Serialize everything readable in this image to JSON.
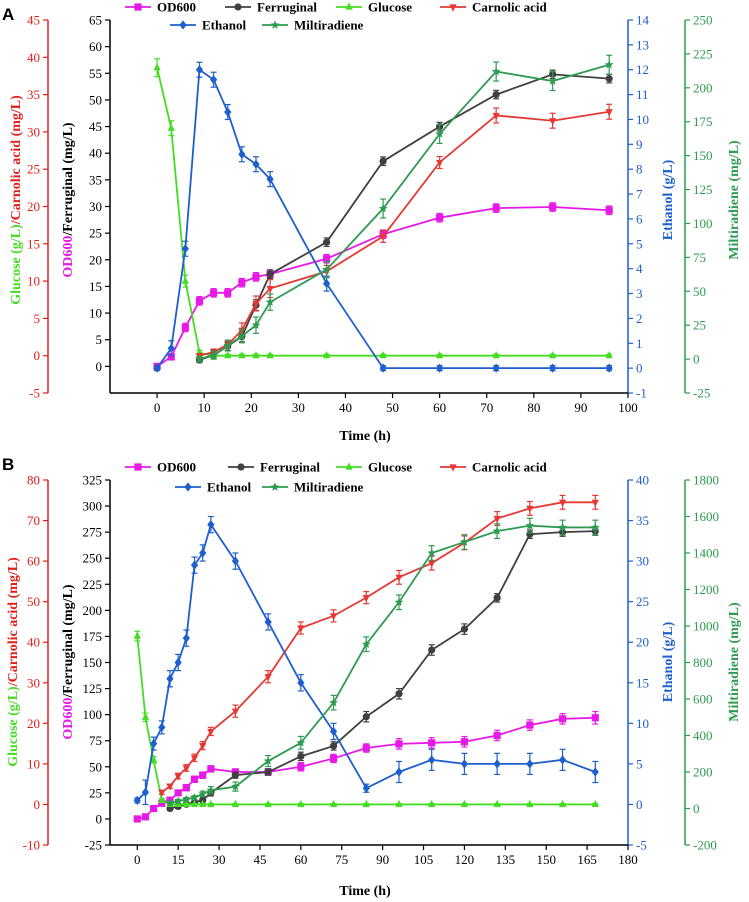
{
  "colors": {
    "od600": "#e619e6",
    "ferruginal": "#404040",
    "glucose": "#44dd22",
    "carnolic": "#e53935",
    "ethanol": "#1e5fcc",
    "miltiradiene": "#2e9b50",
    "axis": "#000000",
    "red_axis": "#e0201b",
    "blue_axis": "#1e5fcc",
    "green_axis": "#2e9b50",
    "glucose_text": "#44dd22",
    "od_text": "#e619e6"
  },
  "chart_data": [
    {
      "panel": "A",
      "type": "line",
      "xlabel": "Time (h)",
      "xlim": [
        -10,
        100
      ],
      "xticks": [
        0,
        10,
        20,
        30,
        40,
        50,
        60,
        70,
        80,
        90,
        100
      ],
      "axes": {
        "red": {
          "ylim": [
            -5,
            45
          ],
          "ticks": [
            -5,
            0,
            5,
            10,
            15,
            20,
            25,
            30,
            35,
            40,
            45
          ],
          "label_part1": "Glucose (g/L)",
          "label_part2": "/Carnolic acid (mg/L)"
        },
        "black": {
          "ylim": [
            -5,
            65
          ],
          "ticks": [
            0,
            5,
            10,
            15,
            20,
            25,
            30,
            35,
            40,
            45,
            50,
            55,
            60,
            65
          ],
          "label_part1": "OD600",
          "label_part2": "/Ferruginal (mg/L)"
        },
        "blue": {
          "ylim": [
            -1,
            14
          ],
          "ticks": [
            -1,
            0,
            1,
            2,
            3,
            4,
            5,
            6,
            7,
            8,
            9,
            10,
            11,
            12,
            13,
            14
          ],
          "label": "Ethanol (g/L)"
        },
        "green": {
          "ylim": [
            -25,
            250
          ],
          "ticks": [
            -25,
            0,
            25,
            50,
            75,
            100,
            125,
            150,
            175,
            200,
            225,
            250
          ],
          "label": "Miltiradiene (mg/L)"
        }
      },
      "legend": [
        "OD600",
        "Ferruginal",
        "Glucose",
        "Carnolic acid",
        "Ethanol",
        "Miltiradiene"
      ],
      "series": [
        {
          "name": "OD600",
          "color_key": "od600",
          "axis": "black",
          "marker": "square",
          "x": [
            0,
            3,
            6,
            9,
            12,
            15,
            18,
            21,
            24,
            36,
            48,
            60,
            72,
            84,
            96
          ],
          "y": [
            0,
            1.8,
            7.3,
            12.3,
            13.8,
            13.8,
            15.7,
            16.8,
            17.3,
            20.2,
            24.8,
            27.9,
            29.7,
            29.9,
            29.3
          ],
          "err": [
            0.5,
            0.6,
            0.8,
            0.8,
            0.8,
            0.8,
            0.8,
            0.8,
            0.8,
            0.8,
            0.8,
            0.8,
            0.8,
            0.8,
            0.8
          ]
        },
        {
          "name": "Ferruginal",
          "color_key": "ferruginal",
          "axis": "black",
          "marker": "circle",
          "x": [
            9,
            12,
            15,
            18,
            21,
            24,
            36,
            48,
            60,
            72,
            84,
            96
          ],
          "y": [
            1.2,
            2.1,
            3.8,
            5.6,
            11.5,
            17.3,
            23.3,
            38.5,
            45.0,
            51.0,
            54.8,
            54.0
          ],
          "err": [
            0.5,
            0.7,
            0.8,
            1.0,
            1.0,
            0.8,
            0.8,
            0.8,
            0.8,
            0.8,
            0.8,
            0.8
          ]
        },
        {
          "name": "Glucose",
          "color_key": "glucose",
          "axis": "red",
          "marker": "triangle",
          "x": [
            0,
            3,
            6,
            9,
            12,
            15,
            18,
            21,
            24,
            36,
            48,
            60,
            72,
            84,
            96
          ],
          "y": [
            38.6,
            30.5,
            10.0,
            0.4,
            0,
            0,
            0,
            0,
            0,
            0,
            0,
            0,
            0,
            0,
            0
          ],
          "err": [
            1.2,
            1.0,
            0.8,
            0.3,
            0.2,
            0.2,
            0.2,
            0.2,
            0.2,
            0.2,
            0.2,
            0.2,
            0.2,
            0.2,
            0.2
          ]
        },
        {
          "name": "Carnolic acid",
          "color_key": "carnolic",
          "axis": "red",
          "marker": "triangle-down",
          "x": [
            9,
            12,
            15,
            18,
            21,
            24,
            36,
            48,
            60,
            72,
            84,
            96
          ],
          "y": [
            0,
            0.5,
            1.5,
            3.4,
            7.0,
            9.0,
            11.3,
            16.0,
            25.9,
            32.2,
            31.5,
            32.7
          ],
          "err": [
            0.3,
            0.4,
            0.5,
            1.0,
            1.0,
            1.2,
            0.8,
            0.8,
            0.8,
            1.0,
            1.0,
            1.0
          ]
        },
        {
          "name": "Ethanol",
          "color_key": "ethanol",
          "axis": "blue",
          "marker": "diamond",
          "x": [
            0,
            3,
            6,
            9,
            12,
            15,
            18,
            21,
            24,
            36,
            48,
            60,
            72,
            84,
            96
          ],
          "y": [
            0,
            0.8,
            4.8,
            12.0,
            11.6,
            10.3,
            8.6,
            8.2,
            7.6,
            3.4,
            0,
            0,
            0,
            0,
            0
          ],
          "err": [
            0.1,
            0.3,
            0.3,
            0.3,
            0.3,
            0.3,
            0.3,
            0.3,
            0.3,
            0.3,
            0.1,
            0.1,
            0.1,
            0.1,
            0.1
          ]
        },
        {
          "name": "Miltiradiene",
          "color_key": "miltiradiene",
          "axis": "green",
          "marker": "star",
          "x": [
            9,
            12,
            15,
            18,
            21,
            24,
            36,
            48,
            60,
            72,
            84,
            96
          ],
          "y": [
            0,
            3,
            10,
            17,
            25,
            42,
            66,
            111,
            166,
            212,
            205,
            217
          ],
          "err": [
            2,
            3,
            4,
            5,
            6,
            6,
            6,
            7,
            7,
            7,
            7,
            7
          ]
        }
      ]
    },
    {
      "panel": "B",
      "type": "line",
      "xlabel": "Time (h)",
      "xlim": [
        -10,
        180
      ],
      "xticks": [
        0,
        15,
        30,
        45,
        60,
        75,
        90,
        105,
        120,
        135,
        150,
        165,
        180
      ],
      "axes": {
        "red": {
          "ylim": [
            -10,
            80
          ],
          "ticks": [
            -10,
            0,
            10,
            20,
            30,
            40,
            50,
            60,
            70,
            80
          ],
          "label_part1": "Glucose (g/L)",
          "label_part2": "/Carnolic acid (mg/L)"
        },
        "black": {
          "ylim": [
            -25,
            325
          ],
          "ticks": [
            -25,
            0,
            25,
            50,
            75,
            100,
            125,
            150,
            175,
            200,
            225,
            250,
            275,
            300,
            325
          ],
          "label_part1": "OD600",
          "label_part2": "/Ferruginal (mg/L)"
        },
        "blue": {
          "ylim": [
            -5,
            40
          ],
          "ticks": [
            -5,
            0,
            5,
            10,
            15,
            20,
            25,
            30,
            35,
            40
          ],
          "label": "Ethanol (g/L)"
        },
        "green": {
          "ylim": [
            -200,
            1800
          ],
          "ticks": [
            -200,
            0,
            200,
            400,
            600,
            800,
            1000,
            1200,
            1400,
            1600,
            1800
          ],
          "label": "Miltiradiene (mg/L)"
        }
      },
      "legend": [
        "OD600",
        "Ferruginal",
        "Glucose",
        "Carnolic acid",
        "Ethanol",
        "Miltiradiene"
      ],
      "series": [
        {
          "name": "OD600",
          "color_key": "od600",
          "axis": "black",
          "marker": "square",
          "x": [
            0,
            3,
            6,
            9,
            12,
            15,
            18,
            21,
            24,
            27,
            36,
            48,
            60,
            72,
            84,
            96,
            108,
            120,
            132,
            144,
            156,
            168
          ],
          "y": [
            0,
            2,
            10,
            15,
            18,
            25,
            30,
            38,
            42,
            48,
            45,
            45,
            50,
            58,
            68,
            72,
            73,
            74,
            80,
            90,
            96,
            97
          ],
          "err": [
            1,
            1,
            2,
            2,
            2,
            2,
            3,
            3,
            3,
            3,
            3,
            3,
            4,
            4,
            4,
            5,
            5,
            5,
            5,
            5,
            5,
            6
          ]
        },
        {
          "name": "Ferruginal",
          "color_key": "ferruginal",
          "axis": "black",
          "marker": "circle",
          "x": [
            12,
            15,
            18,
            21,
            24,
            27,
            36,
            48,
            60,
            72,
            84,
            96,
            108,
            120,
            132,
            144,
            156,
            168
          ],
          "y": [
            10,
            12,
            14,
            16,
            18,
            25,
            42,
            45,
            60,
            70,
            98,
            120,
            162,
            182,
            212,
            273,
            275,
            276
          ],
          "err": [
            2,
            2,
            2,
            2,
            2,
            3,
            3,
            3,
            4,
            4,
            5,
            5,
            5,
            5,
            4,
            4,
            4,
            4
          ]
        },
        {
          "name": "Glucose",
          "color_key": "glucose",
          "axis": "red",
          "marker": "triangle",
          "x": [
            0,
            3,
            6,
            9,
            12,
            15,
            18,
            21,
            24,
            27,
            36,
            48,
            60,
            72,
            84,
            96,
            108,
            120,
            132,
            144,
            156,
            168
          ],
          "y": [
            41.5,
            21.5,
            11.0,
            1.0,
            0,
            0,
            0,
            0,
            0,
            0,
            0,
            0,
            0,
            0,
            0,
            0,
            0,
            0,
            0,
            0,
            0,
            0
          ],
          "err": [
            1.2,
            1.0,
            0.8,
            0.4,
            0.2,
            0.2,
            0.2,
            0.2,
            0.2,
            0.2,
            0.2,
            0.2,
            0.2,
            0.2,
            0.2,
            0.2,
            0.2,
            0.2,
            0.2,
            0.2,
            0.2,
            0.2
          ]
        },
        {
          "name": "Carnolic acid",
          "color_key": "carnolic",
          "axis": "red",
          "marker": "triangle-down",
          "x": [
            9,
            12,
            15,
            18,
            21,
            24,
            27,
            36,
            48,
            60,
            72,
            84,
            96,
            108,
            120,
            132,
            144,
            156,
            168
          ],
          "y": [
            3,
            4.5,
            7,
            9,
            11.5,
            14.5,
            18,
            23,
            31.5,
            43.5,
            46.5,
            51,
            56,
            59.5,
            64.5,
            70.5,
            73,
            74.5,
            74.5
          ],
          "err": [
            0.5,
            0.5,
            0.7,
            0.8,
            0.9,
            1.0,
            1.0,
            1.5,
            1.5,
            1.5,
            1.5,
            1.5,
            1.7,
            1.7,
            1.7,
            1.7,
            1.7,
            1.7,
            1.7
          ]
        },
        {
          "name": "Ethanol",
          "color_key": "ethanol",
          "axis": "blue",
          "marker": "diamond",
          "x": [
            0,
            3,
            6,
            9,
            12,
            15,
            18,
            21,
            24,
            27,
            36,
            48,
            60,
            72,
            84,
            96,
            108,
            120,
            132,
            144,
            156,
            168
          ],
          "y": [
            0.5,
            1.5,
            7.5,
            9.5,
            15.5,
            17.5,
            20.5,
            29.5,
            31,
            34.5,
            30,
            22.5,
            15,
            9,
            2,
            4,
            5.5,
            5,
            5,
            5,
            5.5,
            4
          ],
          "err": [
            0.3,
            1.5,
            0.8,
            0.8,
            1.0,
            1.0,
            1.0,
            1.0,
            1.0,
            1.0,
            1.0,
            1.0,
            1.0,
            1.0,
            0.5,
            1.3,
            1.3,
            1.3,
            1.3,
            1.3,
            1.3,
            1.3
          ]
        },
        {
          "name": "Miltiradiene",
          "color_key": "miltiradiene",
          "axis": "green",
          "marker": "star",
          "x": [
            12,
            15,
            18,
            21,
            24,
            27,
            36,
            48,
            60,
            72,
            84,
            96,
            108,
            120,
            132,
            144,
            156,
            168
          ],
          "y": [
            30,
            40,
            50,
            60,
            80,
            100,
            120,
            260,
            360,
            580,
            900,
            1130,
            1400,
            1460,
            1520,
            1550,
            1540,
            1540
          ],
          "err": [
            10,
            10,
            10,
            10,
            15,
            20,
            25,
            30,
            35,
            40,
            40,
            40,
            40,
            40,
            40,
            40,
            40,
            40
          ]
        }
      ]
    }
  ]
}
